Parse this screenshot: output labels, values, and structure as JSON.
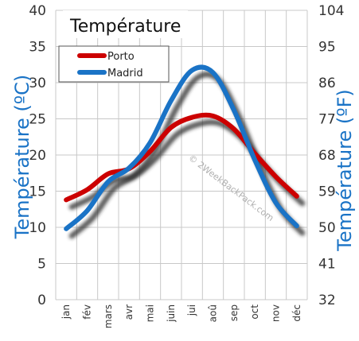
{
  "chart_data": {
    "type": "line",
    "title": "Température",
    "categories": [
      "jan",
      "fév",
      "mars",
      "avr",
      "mai",
      "juin",
      "jui",
      "aoû",
      "sep",
      "oct",
      "nov",
      "déc"
    ],
    "series": [
      {
        "name": "Porto",
        "color": "#cc0000",
        "values": [
          13.8,
          15.2,
          17.4,
          18.1,
          20.5,
          23.8,
          25.2,
          25.4,
          23.6,
          20.2,
          17.0,
          14.3
        ]
      },
      {
        "name": "Madrid",
        "color": "#1a73c6",
        "values": [
          9.8,
          12.3,
          16.3,
          18.2,
          21.7,
          27.5,
          31.7,
          31.4,
          26.2,
          19.3,
          13.4,
          10.2
        ]
      }
    ],
    "ylabel": "Température  (ºC)",
    "ylabel_right": "Température  (ºF)",
    "ylim": [
      0,
      40
    ],
    "yticks": [
      0,
      5,
      10,
      15,
      20,
      25,
      30,
      35,
      40
    ],
    "yticks_right": [
      32,
      41,
      50,
      59,
      68,
      77,
      86,
      95,
      104
    ],
    "grid": true,
    "legend_position": "top-left",
    "watermark": "© 2WeekBackPack.com"
  }
}
